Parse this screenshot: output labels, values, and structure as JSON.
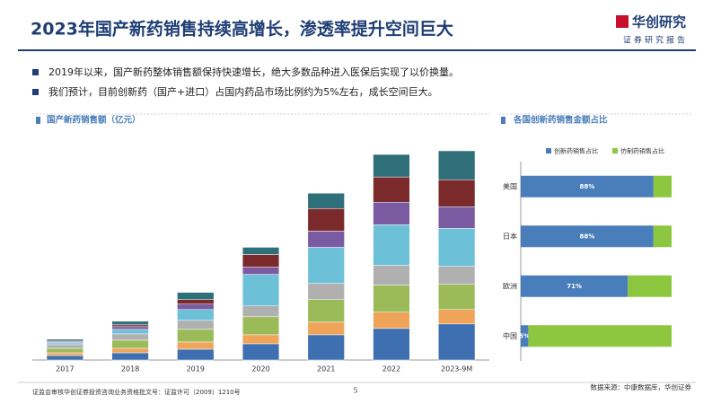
{
  "header": {
    "title": "2023年国产新药销售持续高增长，渗透率提升空间巨大",
    "logo_name": "华创研究",
    "logo_tagline": "证券研究报告"
  },
  "bullets": [
    "2019年以来，国产新药整体销售额保持快速增长，绝大多数品种进入医保后实现了以价换量。",
    "我们预计，目前创新药（国产+进口）占国内药品市场比例约为5%左右，成长空间巨大。"
  ],
  "charts": [
    {
      "chart_data": {
        "type": "stacked-bar",
        "title": "国产新药销售额（亿元）",
        "categories": [
          "2017",
          "2018",
          "2019",
          "2020",
          "2021",
          "2022",
          "2023-9M"
        ],
        "series": [
          {
            "color": "#3e6fb0",
            "values": [
              5,
              8,
              12,
              18,
              28,
              35,
              40
            ]
          },
          {
            "color": "#f0a45a",
            "values": [
              3,
              5,
              8,
              10,
              14,
              18,
              16
            ]
          },
          {
            "color": "#9bbb59",
            "values": [
              5,
              9,
              14,
              20,
              25,
              30,
              28
            ]
          },
          {
            "color": "#b0b0b0",
            "values": [
              4,
              7,
              10,
              12,
              18,
              22,
              20
            ]
          },
          {
            "color": "#6cc0d8",
            "values": [
              2,
              5,
              12,
              35,
              40,
              45,
              42
            ]
          },
          {
            "color": "#7a5aa0",
            "values": [
              1,
              3,
              6,
              8,
              18,
              25,
              24
            ]
          },
          {
            "color": "#7a2a2a",
            "values": [
              1,
              2,
              5,
              14,
              25,
              28,
              30
            ]
          },
          {
            "color": "#2e6f7a",
            "values": [
              2,
              4,
              8,
              8,
              17,
              25,
              32
            ]
          }
        ]
      }
    },
    {
      "chart_data": {
        "type": "stacked-hbar",
        "title": "各国创新药销售金额占比",
        "categories": [
          "美国",
          "日本",
          "欧洲",
          "中国"
        ],
        "xlim": [
          0,
          100
        ],
        "series": [
          {
            "name": "创新药销售占比",
            "color": "#4a7ebb",
            "values": [
              88,
              88,
              71,
              5
            ],
            "value_labels": [
              "88%",
              "88%",
              "71%",
              "5%"
            ]
          },
          {
            "name": "仿制药销售占比",
            "color": "#8dc63f",
            "values": [
              12,
              12,
              29,
              95
            ]
          }
        ]
      }
    }
  ],
  "footer": {
    "license": "证监会审核华创证券投资咨询业务资格批文号：证监许可（2009）1210号",
    "page": "5",
    "source": "数据来源：中康数据库，华创证券"
  }
}
